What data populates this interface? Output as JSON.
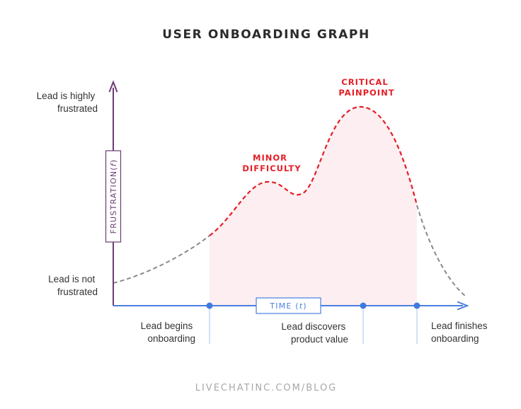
{
  "title": "USER ONBOARDING GRAPH",
  "y_axis": {
    "label_main": "FRUSTRATION",
    "label_var": "f",
    "top_label": [
      "Lead is highly",
      "frustrated"
    ],
    "bottom_label": [
      "Lead is not",
      "frustrated"
    ]
  },
  "x_axis": {
    "label_main": "TIME",
    "label_var": "t"
  },
  "milestones": [
    {
      "lines": [
        "Lead begins",
        "onboarding"
      ]
    },
    {
      "lines": [
        "Lead discovers",
        "product value"
      ]
    },
    {
      "lines": [
        "Lead finishes",
        "onboarding"
      ]
    }
  ],
  "annotations": {
    "minor": [
      "MINOR",
      "DIFFICULTY"
    ],
    "critical": [
      "CRITICAL",
      "PAINPOINT"
    ]
  },
  "footer": "LIVECHATINC.COM/BLOG",
  "colors": {
    "y_axis": "#6b3b73",
    "x_axis": "#4a7fe0",
    "curve_active": "#e41e26",
    "curve_inactive": "#8a8a8a",
    "area_fill": "#fdeef1",
    "marker": "#3f7ae0",
    "guide_line": "#a9c3ef"
  }
}
